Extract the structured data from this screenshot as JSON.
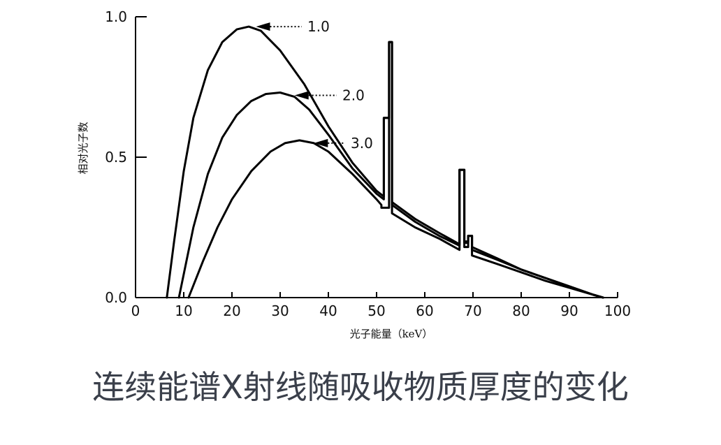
{
  "caption": "连续能谱X射线随吸收物质厚度的变化",
  "chart_data": {
    "type": "line",
    "xlabel": "光子能量（keV）",
    "ylabel": "相对光子数",
    "xlim": [
      0,
      100
    ],
    "ylim": [
      0,
      1.0
    ],
    "x_ticks": [
      "0",
      "10",
      "20",
      "30",
      "40",
      "50",
      "60",
      "70",
      "80",
      "90",
      "100"
    ],
    "y_ticks": [
      "0.0",
      "0.5",
      "1.0"
    ],
    "grid": false,
    "colors": {
      "line": "#000000",
      "caption": "#3a3f4a"
    },
    "series": [
      {
        "name": "1.0",
        "points": [
          [
            6.5,
            0
          ],
          [
            8,
            0.2
          ],
          [
            10,
            0.45
          ],
          [
            12,
            0.64
          ],
          [
            15,
            0.81
          ],
          [
            18,
            0.91
          ],
          [
            21,
            0.955
          ],
          [
            23.5,
            0.965
          ],
          [
            26,
            0.95
          ],
          [
            30,
            0.88
          ],
          [
            35,
            0.76
          ],
          [
            40,
            0.61
          ],
          [
            45,
            0.48
          ],
          [
            50,
            0.38
          ],
          [
            51.5,
            0.36
          ],
          [
            51.5,
            0.64
          ],
          [
            52.6,
            0.64
          ],
          [
            52.6,
            0.91
          ],
          [
            53.2,
            0.91
          ],
          [
            53.2,
            0.34
          ],
          [
            58,
            0.28
          ],
          [
            63,
            0.23
          ],
          [
            67.2,
            0.19
          ],
          [
            67.2,
            0.455
          ],
          [
            68.2,
            0.455
          ],
          [
            68.2,
            0.2
          ],
          [
            69,
            0.2
          ],
          [
            69,
            0.22
          ],
          [
            69.8,
            0.22
          ],
          [
            69.8,
            0.18
          ],
          [
            75,
            0.14
          ],
          [
            80,
            0.1
          ],
          [
            85,
            0.07
          ],
          [
            90,
            0.04
          ],
          [
            95,
            0.01
          ],
          [
            97,
            0
          ]
        ]
      },
      {
        "name": "2.0",
        "points": [
          [
            9,
            0
          ],
          [
            12,
            0.25
          ],
          [
            15,
            0.44
          ],
          [
            18,
            0.57
          ],
          [
            21,
            0.65
          ],
          [
            24,
            0.7
          ],
          [
            27,
            0.725
          ],
          [
            30,
            0.73
          ],
          [
            33,
            0.715
          ],
          [
            36,
            0.67
          ],
          [
            40,
            0.58
          ],
          [
            45,
            0.46
          ],
          [
            50,
            0.37
          ],
          [
            51.5,
            0.35
          ],
          [
            51.5,
            0.64
          ],
          [
            52.6,
            0.64
          ],
          [
            52.6,
            0.91
          ],
          [
            53.2,
            0.91
          ],
          [
            53.2,
            0.33
          ],
          [
            58,
            0.27
          ],
          [
            63,
            0.22
          ],
          [
            67.2,
            0.185
          ],
          [
            67.2,
            0.455
          ],
          [
            68.2,
            0.455
          ],
          [
            68.2,
            0.195
          ],
          [
            69,
            0.195
          ],
          [
            69,
            0.22
          ],
          [
            69.8,
            0.22
          ],
          [
            69.8,
            0.17
          ],
          [
            75,
            0.135
          ],
          [
            80,
            0.1
          ],
          [
            85,
            0.07
          ],
          [
            90,
            0.04
          ],
          [
            95,
            0.01
          ],
          [
            97,
            0
          ]
        ]
      },
      {
        "name": "3.0",
        "points": [
          [
            11,
            0
          ],
          [
            14,
            0.13
          ],
          [
            17,
            0.25
          ],
          [
            20,
            0.35
          ],
          [
            24,
            0.45
          ],
          [
            28,
            0.52
          ],
          [
            31,
            0.55
          ],
          [
            34,
            0.56
          ],
          [
            37,
            0.55
          ],
          [
            40,
            0.52
          ],
          [
            45,
            0.44
          ],
          [
            50,
            0.35
          ],
          [
            51,
            0.33
          ],
          [
            51,
            0.32
          ],
          [
            52.6,
            0.32
          ],
          [
            52.6,
            0.91
          ],
          [
            53.2,
            0.91
          ],
          [
            53.2,
            0.3
          ],
          [
            58,
            0.25
          ],
          [
            63,
            0.21
          ],
          [
            67.2,
            0.17
          ],
          [
            67.2,
            0.455
          ],
          [
            68.2,
            0.455
          ],
          [
            68.2,
            0.18
          ],
          [
            69,
            0.18
          ],
          [
            69,
            0.22
          ],
          [
            69.8,
            0.22
          ],
          [
            69.8,
            0.15
          ],
          [
            75,
            0.12
          ],
          [
            80,
            0.09
          ],
          [
            85,
            0.06
          ],
          [
            90,
            0.035
          ],
          [
            95,
            0.01
          ],
          [
            97,
            0
          ]
        ]
      }
    ],
    "annotations": [
      {
        "text": "1.0",
        "arrow_to": [
          25,
          0.965
        ]
      },
      {
        "text": "2.0",
        "arrow_to": [
          33,
          0.72
        ]
      },
      {
        "text": "3.0",
        "arrow_to": [
          37,
          0.55
        ]
      }
    ]
  }
}
